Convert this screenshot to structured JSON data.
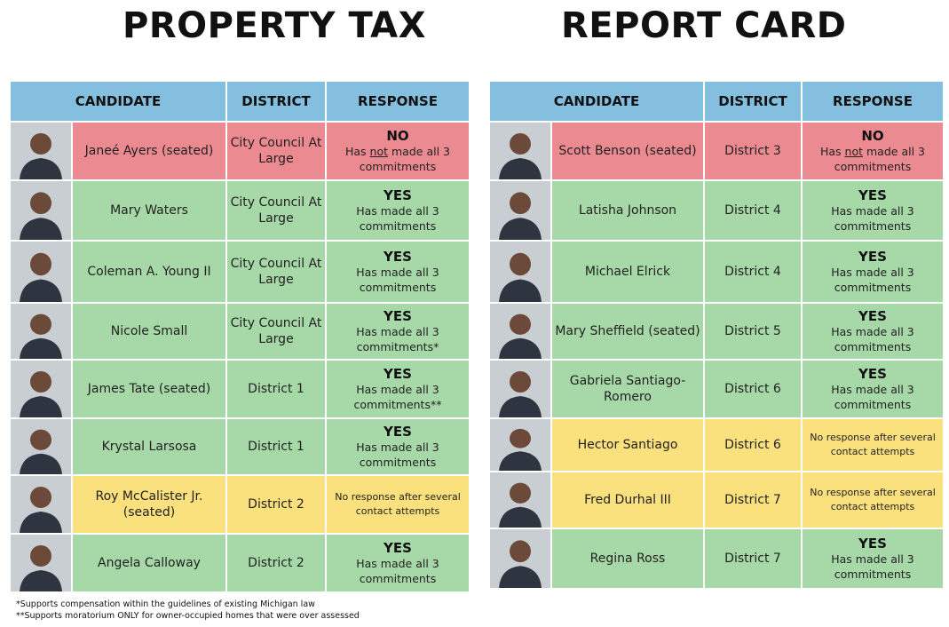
{
  "titles": {
    "left": "PROPERTY TAX",
    "right": "REPORT CARD"
  },
  "headers": {
    "candidate": "CANDIDATE",
    "district": "DISTRICT",
    "response": "RESPONSE"
  },
  "left_rows": [
    {
      "name": "Janeé Ayers (seated)",
      "district": "City Council At Large",
      "status": "no",
      "big": "NO",
      "pre": "Has ",
      "underline": "not",
      "post": " made all 3 commitments"
    },
    {
      "name": "Mary Waters",
      "district": "City Council At Large",
      "status": "yes",
      "big": "YES",
      "text": "Has made all 3 commitments"
    },
    {
      "name": "Coleman A. Young II",
      "district": "City Council At Large",
      "status": "yes",
      "big": "YES",
      "text": "Has made all 3 commitments"
    },
    {
      "name": "Nicole Small",
      "district": "City Council At Large",
      "status": "yes",
      "big": "YES",
      "text": "Has made all 3 commitments*"
    },
    {
      "name": "James Tate (seated)",
      "district": "District 1",
      "status": "yes",
      "big": "YES",
      "text": "Has made all 3 commitments**"
    },
    {
      "name": "Krystal Larsosa",
      "district": "District 1",
      "status": "yes",
      "big": "YES",
      "text": "Has made all 3 commitments"
    },
    {
      "name": "Roy McCalister Jr. (seated)",
      "district": "District 2",
      "status": "none",
      "text": "No response after several contact attempts"
    },
    {
      "name": "Angela Calloway",
      "district": "District 2",
      "status": "yes",
      "big": "YES",
      "text": "Has made all 3 commitments"
    }
  ],
  "right_rows": [
    {
      "name": "Scott Benson (seated)",
      "district": "District 3",
      "status": "no",
      "big": "NO",
      "pre": "Has ",
      "underline": "not",
      "post": " made all 3 commitments"
    },
    {
      "name": "Latisha Johnson",
      "district": "District 4",
      "status": "yes",
      "big": "YES",
      "text": "Has made all 3 commitments"
    },
    {
      "name": "Michael Elrick",
      "district": "District 4",
      "status": "yes",
      "big": "YES",
      "text": "Has made all 3 commitments"
    },
    {
      "name": "Mary Sheffield (seated)",
      "district": "District 5",
      "status": "yes",
      "big": "YES",
      "text": "Has made all 3 commitments"
    },
    {
      "name": "Gabriela Santiago-Romero",
      "district": "District 6",
      "status": "yes",
      "big": "YES",
      "text": "Has made all 3 commitments"
    },
    {
      "name": "Hector Santiago",
      "district": "District 6",
      "status": "none",
      "text": "No response after several contact attempts"
    },
    {
      "name": "Fred Durhal III",
      "district": "District 7",
      "status": "none",
      "text": "No response after several contact attempts"
    },
    {
      "name": "Regina Ross",
      "district": "District 7",
      "status": "yes",
      "big": "YES",
      "text": "Has made all 3 commitments"
    }
  ],
  "footnotes": [
    "*Supports compensation within the guidelines of existing Michigan law",
    "**Supports moratorium ONLY for owner-occupied homes that were over assessed"
  ],
  "colors": {
    "header": "#85bfe0",
    "yes": "#a7d8a8",
    "no": "#ec8a91",
    "none": "#fbe07e"
  },
  "icons": {
    "photo": "person-photo-icon"
  }
}
